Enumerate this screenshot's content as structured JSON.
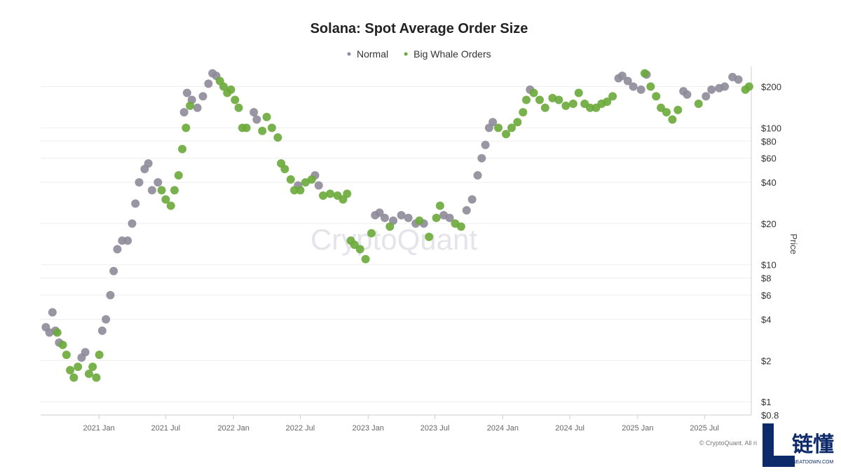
{
  "chart_data": {
    "type": "scatter",
    "title": "Solana: Spot Average Order Size",
    "y_label": "Price",
    "watermark": "CryptoQuant",
    "credit": "© CryptoQuant. All ri",
    "logo_text": "链懂",
    "logo_subtext": "NEATDOWN.COM",
    "log_y": true,
    "grid": true,
    "legend": "top",
    "xlim": [
      "2020-07-27",
      "2025-11-05"
    ],
    "xticks": [
      {
        "value": "2021-01-01",
        "label": "2021 Jan"
      },
      {
        "value": "2021-07-01",
        "label": "2021 Jul"
      },
      {
        "value": "2022-01-01",
        "label": "2022 Jan"
      },
      {
        "value": "2022-07-01",
        "label": "2022 Jul"
      },
      {
        "value": "2023-01-01",
        "label": "2023 Jan"
      },
      {
        "value": "2023-07-01",
        "label": "2023 Jul"
      },
      {
        "value": "2024-01-01",
        "label": "2024 Jan"
      },
      {
        "value": "2024-07-01",
        "label": "2024 Jul"
      },
      {
        "value": "2025-01-01",
        "label": "2025 Jan"
      },
      {
        "value": "2025-07-01",
        "label": "2025 Jul"
      }
    ],
    "ylim": [
      0.8,
      280
    ],
    "yticks": [
      {
        "value": 200,
        "label": "$200"
      },
      {
        "value": 100,
        "label": "$100"
      },
      {
        "value": 80,
        "label": "$80"
      },
      {
        "value": 60,
        "label": "$60"
      },
      {
        "value": 40,
        "label": "$40"
      },
      {
        "value": 20,
        "label": "$20"
      },
      {
        "value": 10,
        "label": "$10"
      },
      {
        "value": 8,
        "label": "$8"
      },
      {
        "value": 6,
        "label": "$6"
      },
      {
        "value": 4,
        "label": "$4"
      },
      {
        "value": 2,
        "label": "$2"
      },
      {
        "value": 1,
        "label": "$1"
      },
      {
        "value": 0.8,
        "label": "$0.8"
      }
    ],
    "series": [
      {
        "name": "Normal",
        "color": "#8e8a99",
        "x": [
          "2020-08-10",
          "2020-08-20",
          "2020-08-28",
          "2020-09-05",
          "2020-09-15",
          "2020-11-15",
          "2020-11-25",
          "2021-01-10",
          "2021-01-20",
          "2021-02-01",
          "2021-02-10",
          "2021-02-20",
          "2021-03-05",
          "2021-03-20",
          "2021-04-01",
          "2021-04-10",
          "2021-04-20",
          "2021-05-05",
          "2021-05-15",
          "2021-05-25",
          "2021-06-10",
          "2021-08-20",
          "2021-08-28",
          "2021-09-10",
          "2021-09-25",
          "2021-10-10",
          "2021-10-25",
          "2021-11-05",
          "2021-11-15",
          "2022-02-25",
          "2022-03-05",
          "2022-06-25",
          "2022-08-10",
          "2022-08-20",
          "2023-01-20",
          "2023-02-01",
          "2023-02-15",
          "2023-03-10",
          "2023-04-01",
          "2023-04-20",
          "2023-05-10",
          "2023-06-01",
          "2023-07-25",
          "2023-08-10",
          "2023-09-25",
          "2023-10-10",
          "2023-10-25",
          "2023-11-05",
          "2023-11-15",
          "2023-11-25",
          "2023-12-05",
          "2024-03-15",
          "2024-11-10",
          "2024-11-20",
          "2024-12-05",
          "2024-12-20",
          "2025-01-10",
          "2025-01-25",
          "2025-05-05",
          "2025-05-15",
          "2025-07-05",
          "2025-07-20",
          "2025-08-10",
          "2025-08-25",
          "2025-09-15",
          "2025-10-01"
        ],
        "values": [
          3.5,
          3.2,
          4.5,
          3.3,
          2.7,
          2.1,
          2.3,
          3.3,
          4.0,
          6,
          9,
          13,
          15,
          15,
          20,
          28,
          40,
          50,
          55,
          35,
          40,
          130,
          180,
          160,
          140,
          170,
          210,
          250,
          240,
          130,
          115,
          38,
          45,
          38,
          23,
          24,
          22,
          21,
          23,
          22,
          20,
          20,
          23,
          22,
          25,
          30,
          45,
          60,
          75,
          100,
          110,
          190,
          230,
          240,
          220,
          200,
          190,
          245,
          185,
          175,
          170,
          190,
          195,
          200,
          235,
          225
        ]
      },
      {
        "name": "Big Whale Orders",
        "color": "#6aaa3a",
        "x": [
          "2020-09-10",
          "2020-09-25",
          "2020-10-05",
          "2020-10-15",
          "2020-10-25",
          "2020-11-05",
          "2020-12-05",
          "2020-12-15",
          "2020-12-25",
          "2021-01-02",
          "2021-06-20",
          "2021-07-01",
          "2021-07-15",
          "2021-07-25",
          "2021-08-05",
          "2021-08-15",
          "2021-08-25",
          "2021-09-05",
          "2021-11-25",
          "2021-12-05",
          "2021-12-15",
          "2021-12-25",
          "2022-01-05",
          "2022-01-15",
          "2022-01-25",
          "2022-02-05",
          "2022-03-20",
          "2022-04-01",
          "2022-04-15",
          "2022-05-01",
          "2022-05-10",
          "2022-05-20",
          "2022-06-05",
          "2022-06-15",
          "2022-07-01",
          "2022-07-15",
          "2022-08-01",
          "2022-09-01",
          "2022-09-20",
          "2022-10-10",
          "2022-10-25",
          "2022-11-05",
          "2022-11-15",
          "2022-11-25",
          "2022-12-10",
          "2022-12-25",
          "2023-01-10",
          "2023-03-01",
          "2023-05-20",
          "2023-06-15",
          "2023-07-05",
          "2023-07-15",
          "2023-08-25",
          "2023-09-10",
          "2023-12-20",
          "2024-01-10",
          "2024-01-25",
          "2024-02-10",
          "2024-02-25",
          "2024-03-05",
          "2024-03-25",
          "2024-04-10",
          "2024-04-25",
          "2024-05-15",
          "2024-06-01",
          "2024-06-20",
          "2024-07-10",
          "2024-07-25",
          "2024-08-10",
          "2024-08-25",
          "2024-09-10",
          "2024-09-25",
          "2024-10-10",
          "2024-10-25",
          "2025-01-20",
          "2025-02-05",
          "2025-02-20",
          "2025-03-05",
          "2025-03-20",
          "2025-04-05",
          "2025-04-20",
          "2025-06-15",
          "2025-10-20",
          "2025-10-30"
        ],
        "values": [
          3.2,
          2.6,
          2.2,
          1.7,
          1.5,
          1.8,
          1.6,
          1.8,
          1.5,
          2.2,
          35,
          30,
          27,
          35,
          45,
          70,
          100,
          145,
          220,
          200,
          180,
          190,
          160,
          140,
          100,
          100,
          95,
          120,
          100,
          85,
          55,
          50,
          42,
          35,
          35,
          40,
          42,
          32,
          33,
          32,
          30,
          33,
          15,
          14,
          13,
          11,
          17,
          19,
          21,
          16,
          22,
          27,
          20,
          19,
          100,
          90,
          100,
          110,
          130,
          160,
          180,
          160,
          140,
          165,
          160,
          145,
          150,
          180,
          150,
          140,
          140,
          150,
          155,
          170,
          250,
          200,
          170,
          140,
          130,
          115,
          135,
          150,
          190,
          200
        ]
      }
    ]
  }
}
